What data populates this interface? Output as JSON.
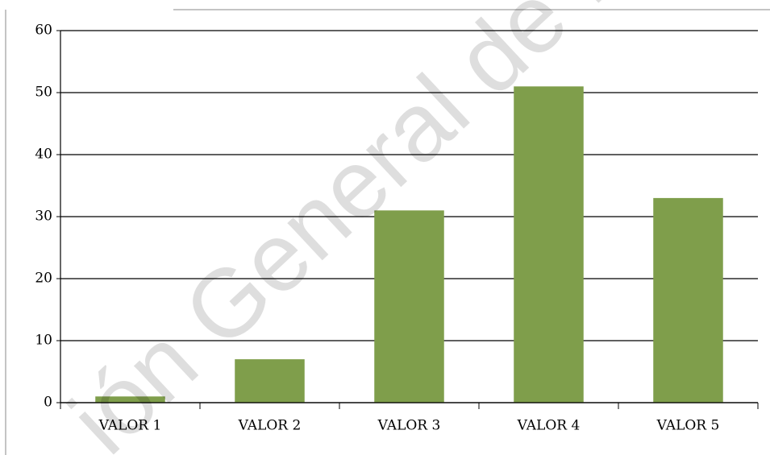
{
  "chart_data": {
    "type": "bar",
    "categories": [
      "VALOR 1",
      "VALOR 2",
      "VALOR 3",
      "VALOR 4",
      "VALOR 5"
    ],
    "values": [
      1,
      7,
      31,
      51,
      33
    ],
    "color": "#7f9e4b",
    "ylim": [
      0,
      60
    ],
    "yticks": [
      0,
      10,
      20,
      30,
      40,
      50,
      60
    ],
    "grid": true,
    "watermark": "ión General de B"
  }
}
